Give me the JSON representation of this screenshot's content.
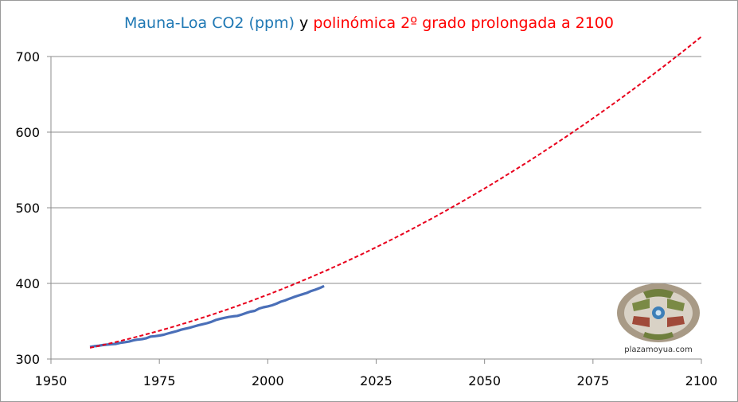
{
  "title": {
    "part1": "Mauna-Loa CO2 (ppm)",
    "part2": " y ",
    "part3": "polinómica 2º grado prolongada a 2100"
  },
  "colors": {
    "observed": "#4a6fb8",
    "fit": "#e8001c",
    "title_blue": "#1f78b4",
    "title_red": "#ff0000",
    "grid": "#8c8c8c"
  },
  "logo": {
    "text": "plazamoyua.com",
    "icon": "plaza-emblem-icon"
  },
  "chart_data": {
    "type": "line",
    "title": "Mauna-Loa CO2 (ppm) y polinómica 2º grado prolongada a 2100",
    "xlabel": "",
    "ylabel": "",
    "xlim": [
      1950,
      2100
    ],
    "ylim": [
      300,
      700
    ],
    "xticks": [
      "1950",
      "1975",
      "2000",
      "2025",
      "2050",
      "2075",
      "2100"
    ],
    "yticks": [
      "300",
      "400",
      "500",
      "600",
      "700"
    ],
    "grid": true,
    "series": [
      {
        "name": "Mauna-Loa CO2 (ppm)",
        "style": "solid",
        "x": [
          1959,
          1960,
          1961,
          1962,
          1963,
          1964,
          1965,
          1966,
          1967,
          1968,
          1969,
          1970,
          1971,
          1972,
          1973,
          1974,
          1975,
          1976,
          1977,
          1978,
          1979,
          1980,
          1981,
          1982,
          1983,
          1984,
          1985,
          1986,
          1987,
          1988,
          1989,
          1990,
          1991,
          1992,
          1993,
          1994,
          1995,
          1996,
          1997,
          1998,
          1999,
          2000,
          2001,
          2002,
          2003,
          2004,
          2005,
          2006,
          2007,
          2008,
          2009,
          2010,
          2011,
          2012,
          2013
        ],
        "y": [
          316.0,
          316.9,
          317.6,
          318.5,
          319.0,
          319.6,
          320.0,
          321.4,
          322.2,
          323.0,
          324.6,
          325.7,
          326.3,
          327.5,
          329.7,
          330.2,
          331.1,
          332.1,
          333.8,
          335.4,
          336.8,
          338.7,
          340.1,
          341.4,
          343.0,
          344.6,
          346.0,
          347.4,
          349.2,
          351.6,
          353.1,
          354.4,
          355.6,
          356.4,
          357.1,
          358.8,
          360.8,
          362.6,
          363.7,
          366.7,
          368.4,
          369.6,
          371.1,
          373.2,
          375.8,
          377.5,
          379.8,
          381.9,
          383.8,
          385.6,
          387.4,
          389.9,
          391.7,
          393.9,
          396.5
        ]
      },
      {
        "name": "polinómica 2º grado prolongada a 2100",
        "style": "dashed",
        "fit": {
          "type": "quadratic",
          "a": 0.01203,
          "b": 1.2213,
          "c": 314.8,
          "x0": 1959
        },
        "x_range": [
          1959,
          2100
        ]
      }
    ]
  }
}
